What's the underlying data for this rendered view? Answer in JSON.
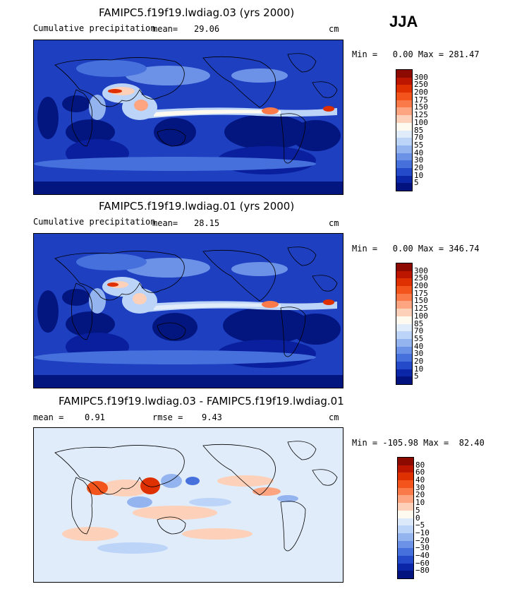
{
  "season": "JJA",
  "panels": [
    {
      "title": "FAMIPC5.f19f19.lwdiag.03 (yrs 2000)",
      "left_label": "Cumulative precipitation",
      "mean_label": "mean=",
      "mean_value": "29.06",
      "units": "cm",
      "minmax": "Min =   0.00 Max = 281.47",
      "colorbar_labels": [
        "300",
        "250",
        "200",
        "175",
        "150",
        "125",
        "100",
        "85",
        "70",
        "55",
        "40",
        "30",
        "20",
        "10",
        "5"
      ]
    },
    {
      "title": "FAMIPC5.f19f19.lwdiag.01 (yrs 2000)",
      "left_label": "Cumulative precipitation",
      "mean_label": "mean=",
      "mean_value": "28.15",
      "units": "cm",
      "minmax": "Min =   0.00 Max = 346.74",
      "colorbar_labels": [
        "300",
        "250",
        "200",
        "175",
        "150",
        "125",
        "100",
        "85",
        "70",
        "55",
        "40",
        "30",
        "20",
        "10",
        "5"
      ]
    },
    {
      "title": "FAMIPC5.f19f19.lwdiag.03 - FAMIPC5.f19f19.lwdiag.01",
      "mean_label": "mean =",
      "mean_value": "0.91",
      "rmse_label": "rmse =",
      "rmse_value": "9.43",
      "units": "cm",
      "minmax": "Min = -105.98 Max =  82.40",
      "colorbar_labels": [
        "80",
        "60",
        "40",
        "30",
        "20",
        "10",
        "5",
        "0",
        "−5",
        "−10",
        "−20",
        "−30",
        "−40",
        "−60",
        "−80"
      ]
    }
  ],
  "colors": {
    "precip": [
      "#8c0a00",
      "#bd1600",
      "#de3000",
      "#f2541c",
      "#fa7a4a",
      "#fda481",
      "#fdd1b9",
      "#fffaf0",
      "#e0ecfa",
      "#bcd4f7",
      "#94b4f0",
      "#6c92e8",
      "#4670dc",
      "#2449c9",
      "#0c26a8",
      "#021380"
    ],
    "diff": [
      "#8c0a00",
      "#bd1600",
      "#de3000",
      "#f2541c",
      "#fa7a4a",
      "#fda481",
      "#fdd1b9",
      "#fffaf0",
      "#dbe9fb",
      "#bcd4f7",
      "#94b4f0",
      "#6c92e8",
      "#4670dc",
      "#2449c9",
      "#0c26a8",
      "#021380"
    ]
  }
}
